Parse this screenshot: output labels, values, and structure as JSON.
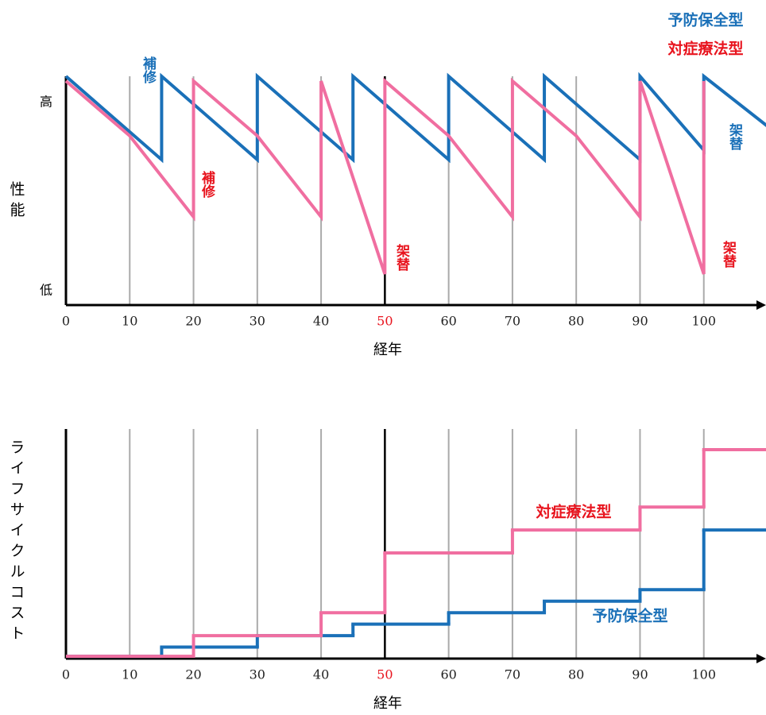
{
  "chart_data": [
    {
      "type": "line",
      "ylabel": "性能",
      "xlabel": "経年",
      "xlim": [
        0,
        110
      ],
      "xticks": [
        0,
        10,
        20,
        30,
        40,
        50,
        60,
        70,
        80,
        90,
        100
      ],
      "highlight_xtick": 50,
      "highlight_color": "#e8141e",
      "ylim": [
        0,
        100
      ],
      "yticks": [
        {
          "value": 6,
          "label": "低"
        },
        {
          "value": 85,
          "label": "高"
        }
      ],
      "grid": true,
      "legend": "top-right",
      "series": [
        {
          "name": "予防保全型",
          "color": "#1a70b8",
          "label_color": "#1a70b8",
          "x": [
            0,
            15,
            15,
            30,
            30,
            45,
            45,
            60,
            60,
            75,
            75,
            90,
            90,
            100,
            100,
            110
          ],
          "values": [
            96,
            61,
            96,
            61,
            96,
            61,
            96,
            61,
            96,
            61,
            96,
            61,
            96,
            65,
            96,
            75
          ]
        },
        {
          "name": "対症療法型",
          "color": "#f06ea0",
          "label_color": "#e8141e",
          "x": [
            0,
            10,
            20,
            20,
            30,
            40,
            40,
            50,
            50,
            60,
            70,
            70,
            80,
            90,
            90,
            100,
            100
          ],
          "values": [
            94,
            71,
            37,
            94,
            71,
            37,
            94,
            13,
            94,
            71,
            37,
            94,
            71,
            37,
            94,
            13,
            94
          ]
        }
      ],
      "annotations": [
        {
          "text": "補修",
          "color": "#1a70b8"
        },
        {
          "text": "補修",
          "color": "#e8141e"
        },
        {
          "text": "架替",
          "color": "#e8141e"
        },
        {
          "text": "架替",
          "color": "#1a70b8"
        },
        {
          "text": "架替",
          "color": "#e8141e"
        }
      ]
    },
    {
      "type": "step",
      "ylabel": "ライフサイクルコスト",
      "xlabel": "経年",
      "xlim": [
        0,
        110
      ],
      "xticks": [
        0,
        10,
        20,
        30,
        40,
        50,
        60,
        70,
        80,
        90,
        100
      ],
      "highlight_xtick": 50,
      "highlight_color": "#e8141e",
      "ylim": [
        0,
        100
      ],
      "grid": true,
      "legend": "inline",
      "series": [
        {
          "name": "予防保全型",
          "color": "#1a70b8",
          "label_color": "#1a70b8",
          "x": [
            0,
            15,
            30,
            45,
            60,
            75,
            90,
            100
          ],
          "values": [
            1,
            5,
            10,
            15,
            20,
            25,
            30,
            56
          ]
        },
        {
          "name": "対症療法型",
          "color": "#f06ea0",
          "label_color": "#e8141e",
          "x": [
            0,
            20,
            40,
            50,
            70,
            90,
            100
          ],
          "values": [
            1,
            10,
            20,
            46,
            56,
            66,
            91
          ]
        }
      ]
    }
  ]
}
